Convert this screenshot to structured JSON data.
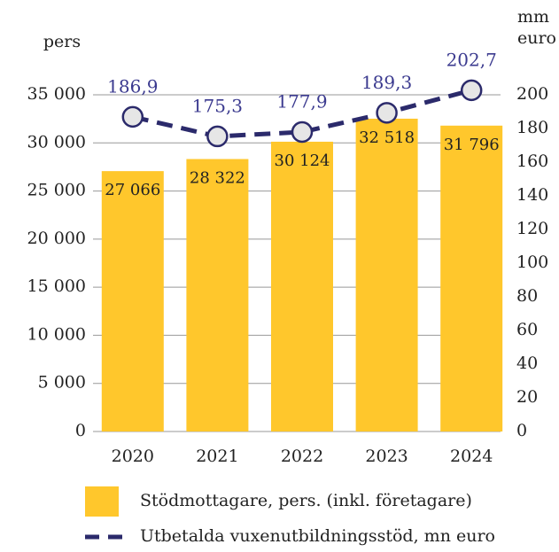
{
  "chart_data": {
    "type": "bar_line",
    "y_label": "pers",
    "y2_label": [
      "mm",
      "euro"
    ],
    "categories": [
      "2020",
      "2021",
      "2022",
      "2023",
      "2024"
    ],
    "series": [
      {
        "name": "Stödmottagare, pers. (inkl. företagare)",
        "type": "bar",
        "color": "#ffc72c",
        "values": [
          27066,
          28322,
          30124,
          32518,
          31796
        ],
        "value_labels": [
          "27 066",
          "28 322",
          "30 124",
          "32 518",
          "31 796"
        ]
      },
      {
        "name": "Utbetalda vuxenutbildningsstöd, mn euro",
        "type": "line",
        "axis": "y2",
        "color": "#2b2a6b",
        "values": [
          186.9,
          175.3,
          177.9,
          189.3,
          202.7
        ],
        "value_labels": [
          "186,9",
          "175,3",
          "177,9",
          "189,3",
          "202,7"
        ]
      }
    ],
    "ylim": [
      0,
      35000
    ],
    "yticks": [
      0,
      {
        "value": 5000,
        "label": "5 000"
      },
      {
        "value": 10000,
        "label": "10 000"
      },
      {
        "value": 15000,
        "label": "15 000"
      },
      {
        "value": 20000,
        "label": "20 000"
      },
      {
        "value": 25000,
        "label": "25 000"
      },
      {
        "value": 30000,
        "label": "30 000"
      },
      {
        "value": 35000,
        "label": "35 000"
      }
    ],
    "y2lim": [
      0,
      200
    ],
    "y2ticks": [
      0,
      20,
      40,
      60,
      80,
      100,
      120,
      140,
      160,
      180,
      200
    ],
    "grid": true
  }
}
